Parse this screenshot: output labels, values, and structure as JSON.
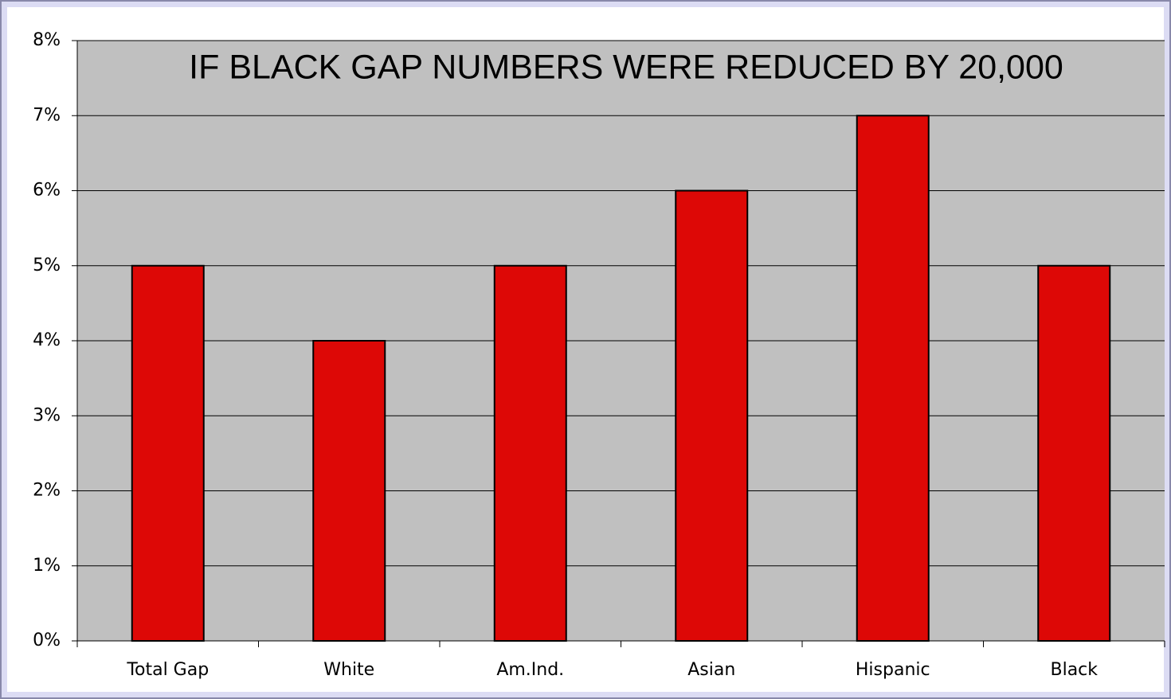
{
  "chart_data": {
    "type": "bar",
    "title": "IF BLACK GAP NUMBERS WERE REDUCED BY 20,000",
    "categories": [
      "Total Gap",
      "White",
      "Am.Ind.",
      "Asian",
      "Hispanic",
      "Black"
    ],
    "values": [
      5,
      4,
      5,
      6,
      7,
      5
    ],
    "color": "#dd0806",
    "ylim": [
      0,
      8
    ],
    "yticks": [
      {
        "value": 0,
        "label": "0%"
      },
      {
        "value": 1,
        "label": "1%"
      },
      {
        "value": 2,
        "label": "2%"
      },
      {
        "value": 3,
        "label": "3%"
      },
      {
        "value": 4,
        "label": "4%"
      },
      {
        "value": 5,
        "label": "5%"
      },
      {
        "value": 6,
        "label": "6%"
      },
      {
        "value": 7,
        "label": "7%"
      },
      {
        "value": 8,
        "label": "8%"
      }
    ],
    "grid": true
  }
}
